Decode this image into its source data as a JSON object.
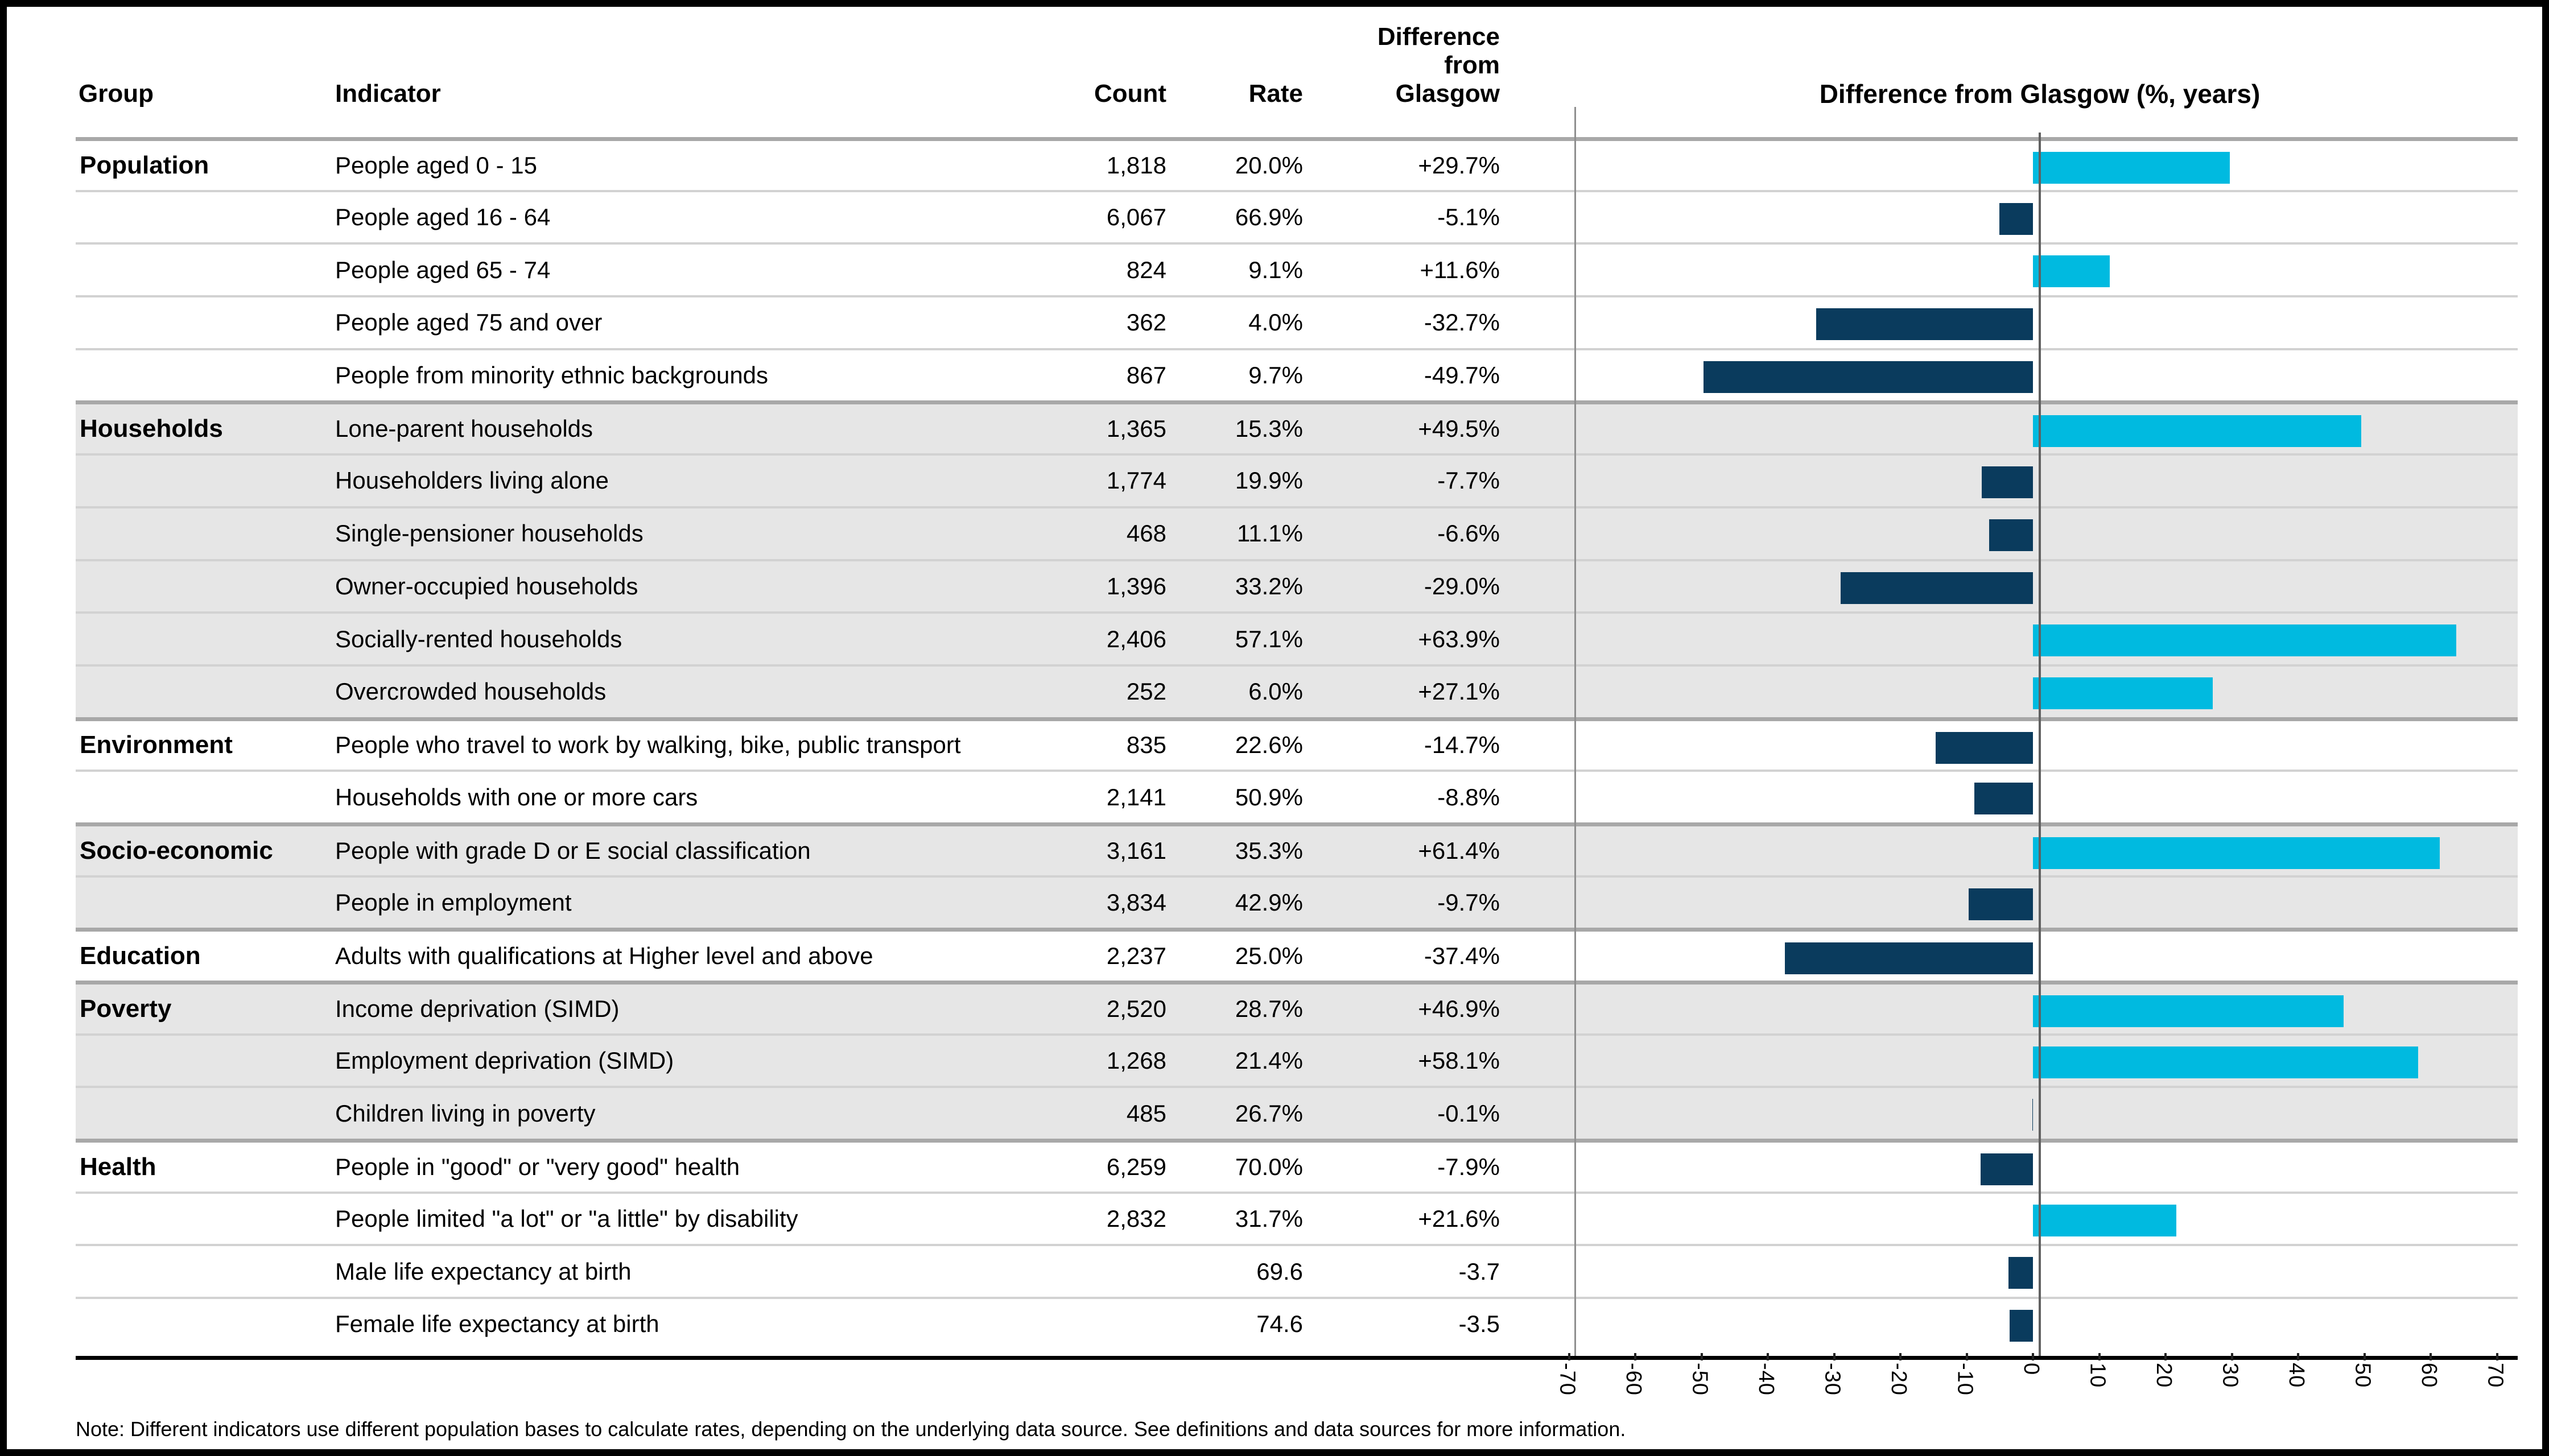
{
  "header": {
    "group": "Group",
    "indicator": "Indicator",
    "count": "Count",
    "rate": "Rate",
    "diff_lines": [
      "Difference",
      "from",
      "Glasgow"
    ],
    "chart_title": "Difference from Glasgow (%, years)"
  },
  "note": "Note: Different indicators use different population bases to calculate rates, depending on the underlying data source. See definitions and data sources for more information.",
  "colors": {
    "positive_bar": "#00bae0",
    "negative_bar": "#0a3b5d",
    "shaded_section_bg": "#e6e6e6",
    "axis_line": "#000000",
    "zero_line": "#616161"
  },
  "table": {
    "rows": [
      {
        "group": "Population",
        "indicator": "People aged 0 - 15",
        "count": "1,818",
        "rate": "20.0%",
        "diff": "+29.7%",
        "value": 29.7,
        "shaded": false,
        "group_start": true
      },
      {
        "group": "",
        "indicator": "People aged 16 - 64",
        "count": "6,067",
        "rate": "66.9%",
        "diff": "-5.1%",
        "value": -5.1,
        "shaded": false,
        "group_start": false
      },
      {
        "group": "",
        "indicator": "People aged 65 - 74",
        "count": "824",
        "rate": "9.1%",
        "diff": "+11.6%",
        "value": 11.6,
        "shaded": false,
        "group_start": false
      },
      {
        "group": "",
        "indicator": "People aged 75 and over",
        "count": "362",
        "rate": "4.0%",
        "diff": "-32.7%",
        "value": -32.7,
        "shaded": false,
        "group_start": false
      },
      {
        "group": "",
        "indicator": "People from minority ethnic backgrounds",
        "count": "867",
        "rate": "9.7%",
        "diff": "-49.7%",
        "value": -49.7,
        "shaded": false,
        "group_start": false
      },
      {
        "group": "Households",
        "indicator": "Lone-parent households",
        "count": "1,365",
        "rate": "15.3%",
        "diff": "+49.5%",
        "value": 49.5,
        "shaded": true,
        "group_start": true
      },
      {
        "group": "",
        "indicator": "Householders living alone",
        "count": "1,774",
        "rate": "19.9%",
        "diff": "-7.7%",
        "value": -7.7,
        "shaded": true,
        "group_start": false
      },
      {
        "group": "",
        "indicator": "Single-pensioner households",
        "count": "468",
        "rate": "11.1%",
        "diff": "-6.6%",
        "value": -6.6,
        "shaded": true,
        "group_start": false
      },
      {
        "group": "",
        "indicator": "Owner-occupied households",
        "count": "1,396",
        "rate": "33.2%",
        "diff": "-29.0%",
        "value": -29.0,
        "shaded": true,
        "group_start": false
      },
      {
        "group": "",
        "indicator": "Socially-rented households",
        "count": "2,406",
        "rate": "57.1%",
        "diff": "+63.9%",
        "value": 63.9,
        "shaded": true,
        "group_start": false
      },
      {
        "group": "",
        "indicator": "Overcrowded households",
        "count": "252",
        "rate": "6.0%",
        "diff": "+27.1%",
        "value": 27.1,
        "shaded": true,
        "group_start": false
      },
      {
        "group": "Environment",
        "indicator": "People who travel to work by walking, bike, public transport",
        "count": "835",
        "rate": "22.6%",
        "diff": "-14.7%",
        "value": -14.7,
        "shaded": false,
        "group_start": true
      },
      {
        "group": "",
        "indicator": "Households with one or more cars",
        "count": "2,141",
        "rate": "50.9%",
        "diff": "-8.8%",
        "value": -8.8,
        "shaded": false,
        "group_start": false
      },
      {
        "group": "Socio-economic",
        "indicator": "People with grade D or E social classification",
        "count": "3,161",
        "rate": "35.3%",
        "diff": "+61.4%",
        "value": 61.4,
        "shaded": true,
        "group_start": true
      },
      {
        "group": "",
        "indicator": "People in employment",
        "count": "3,834",
        "rate": "42.9%",
        "diff": "-9.7%",
        "value": -9.7,
        "shaded": true,
        "group_start": false
      },
      {
        "group": "Education",
        "indicator": "Adults with qualifications at Higher level and above",
        "count": "2,237",
        "rate": "25.0%",
        "diff": "-37.4%",
        "value": -37.4,
        "shaded": false,
        "group_start": true
      },
      {
        "group": "Poverty",
        "indicator": "Income deprivation (SIMD)",
        "count": "2,520",
        "rate": "28.7%",
        "diff": "+46.9%",
        "value": 46.9,
        "shaded": true,
        "group_start": true
      },
      {
        "group": "",
        "indicator": "Employment deprivation (SIMD)",
        "count": "1,268",
        "rate": "21.4%",
        "diff": "+58.1%",
        "value": 58.1,
        "shaded": true,
        "group_start": false
      },
      {
        "group": "",
        "indicator": "Children living in poverty",
        "count": "485",
        "rate": "26.7%",
        "diff": "-0.1%",
        "value": -0.1,
        "shaded": true,
        "group_start": false
      },
      {
        "group": "Health",
        "indicator": "People in \"good\" or \"very good\" health",
        "count": "6,259",
        "rate": "70.0%",
        "diff": "-7.9%",
        "value": -7.9,
        "shaded": false,
        "group_start": true
      },
      {
        "group": "",
        "indicator": "People limited \"a lot\" or \"a little\" by disability",
        "count": "2,832",
        "rate": "31.7%",
        "diff": "+21.6%",
        "value": 21.6,
        "shaded": false,
        "group_start": false
      },
      {
        "group": "",
        "indicator": "Male life expectancy at birth",
        "count": "",
        "rate": "69.6",
        "diff": "-3.7",
        "value": -3.7,
        "shaded": false,
        "group_start": false
      },
      {
        "group": "",
        "indicator": "Female life expectancy at birth",
        "count": "",
        "rate": "74.6",
        "diff": "-3.5",
        "value": -3.5,
        "shaded": false,
        "group_start": false
      }
    ]
  },
  "chart_data": {
    "type": "bar",
    "orientation": "horizontal",
    "title": "Difference from Glasgow (%, years)",
    "xlabel": "Difference from Glasgow",
    "xlim": [
      -70,
      70
    ],
    "x_tick_labels": [
      "-70",
      "-60",
      "-50",
      "-40",
      "-30",
      "-20",
      "-10",
      "0",
      "10",
      "20",
      "30",
      "40",
      "50",
      "60",
      "70"
    ],
    "grid": false,
    "legend": "none",
    "categories": [
      "People aged 0 - 15",
      "People aged 16 - 64",
      "People aged 65 - 74",
      "People aged 75 and over",
      "People from minority ethnic backgrounds",
      "Lone-parent households",
      "Householders living alone",
      "Single-pensioner households",
      "Owner-occupied households",
      "Socially-rented households",
      "Overcrowded households",
      "People who travel to work by walking, bike, public transport",
      "Households with one or more cars",
      "People with grade D or E social classification",
      "People in employment",
      "Adults with qualifications at Higher level and above",
      "Income deprivation (SIMD)",
      "Employment deprivation (SIMD)",
      "Children living in poverty",
      "People in \"good\" or \"very good\" health",
      "People limited \"a lot\" or \"a little\" by disability",
      "Male life expectancy at birth",
      "Female life expectancy at birth"
    ],
    "values": [
      29.7,
      -5.1,
      11.6,
      -32.7,
      -49.7,
      49.5,
      -7.7,
      -6.6,
      -29.0,
      63.9,
      27.1,
      -14.7,
      -8.8,
      61.4,
      -9.7,
      -37.4,
      46.9,
      58.1,
      -0.1,
      -7.9,
      21.6,
      -3.7,
      -3.5
    ],
    "positive_color": "#00bae0",
    "negative_color": "#0a3b5d"
  }
}
